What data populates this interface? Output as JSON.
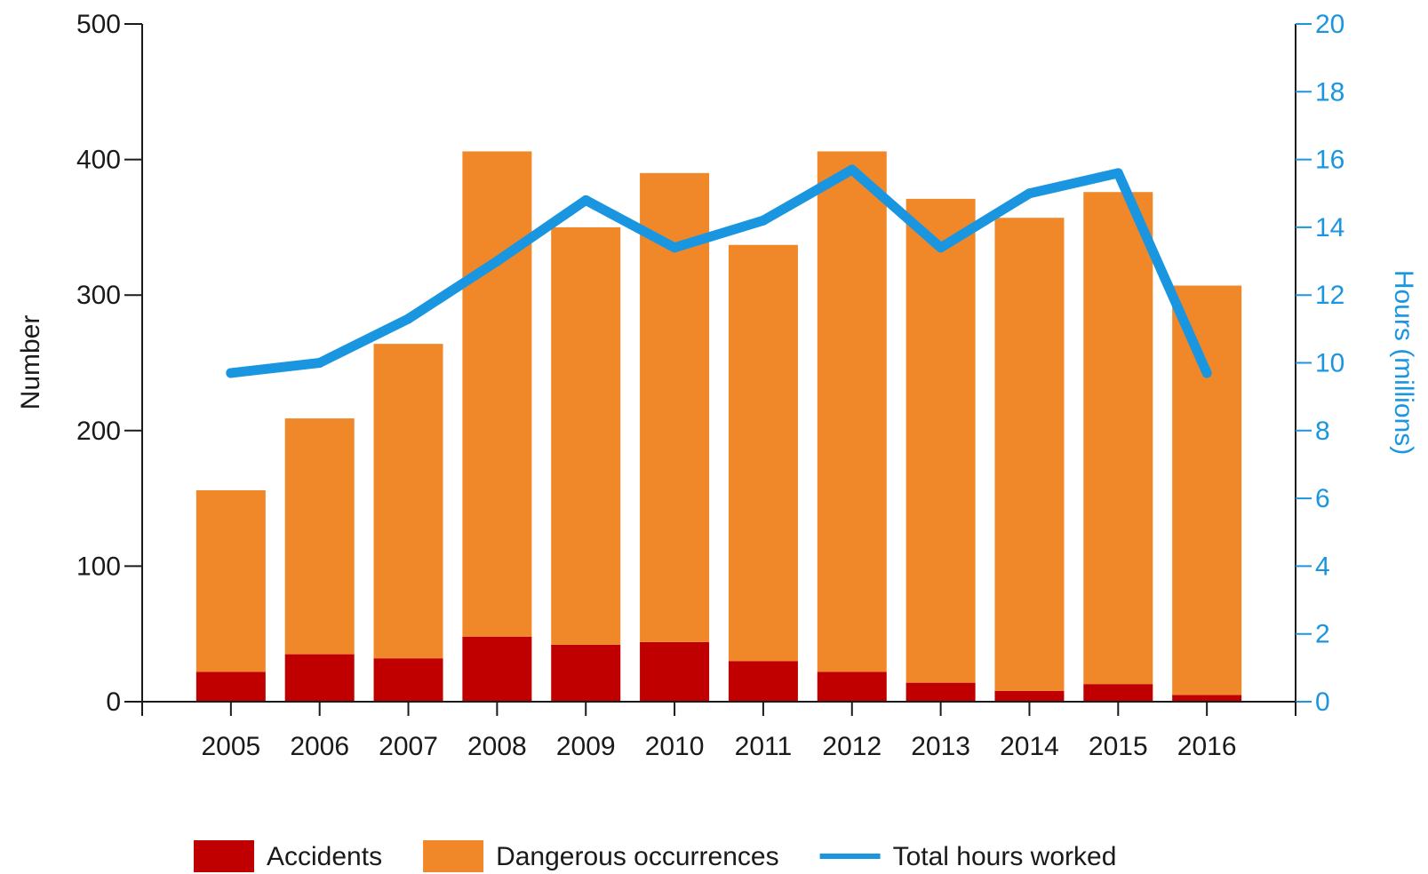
{
  "chart_data": {
    "type": "bar",
    "stacked": true,
    "categories": [
      "2005",
      "2006",
      "2007",
      "2008",
      "2009",
      "2010",
      "2011",
      "2012",
      "2013",
      "2014",
      "2015",
      "2016"
    ],
    "series": [
      {
        "name": "Accidents",
        "type": "bar",
        "axis": "left",
        "color": "#c00000",
        "values": [
          22,
          35,
          32,
          48,
          42,
          44,
          30,
          22,
          14,
          8,
          13,
          5
        ]
      },
      {
        "name": "Dangerous occurrences",
        "type": "bar",
        "axis": "left",
        "color": "#f0882a",
        "values": [
          134,
          174,
          232,
          358,
          308,
          346,
          307,
          384,
          357,
          349,
          363,
          302
        ]
      },
      {
        "name": "Total hours worked",
        "type": "line",
        "axis": "right",
        "color": "#1a96e0",
        "values": [
          9.7,
          10.0,
          11.3,
          13.0,
          14.8,
          13.4,
          14.2,
          15.7,
          13.4,
          15.0,
          15.6,
          9.7
        ]
      }
    ],
    "ylabel": "Number",
    "ylim": [
      0,
      500
    ],
    "yticks": [
      0,
      100,
      200,
      300,
      400,
      500
    ],
    "y2label": "Hours (millions)",
    "y2lim": [
      0,
      20
    ],
    "y2ticks": [
      0,
      2,
      4,
      6,
      8,
      10,
      12,
      14,
      16,
      18,
      20
    ],
    "y2_color": "#1a96e0",
    "grid": false,
    "legend_position": "bottom"
  }
}
